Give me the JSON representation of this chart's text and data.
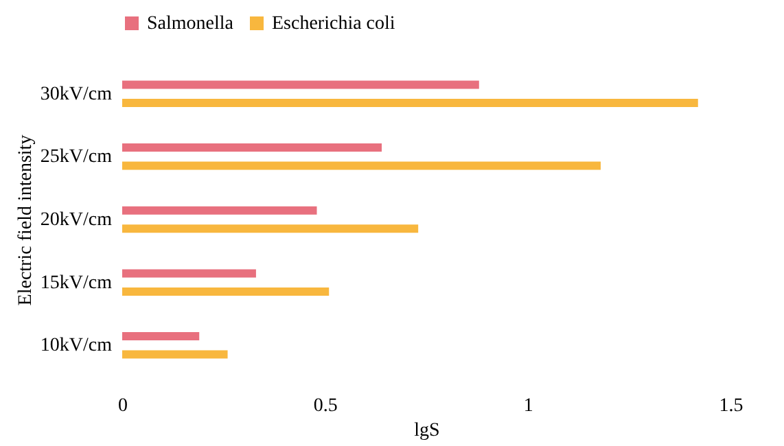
{
  "chart_data": {
    "type": "bar",
    "orientation": "horizontal",
    "xlabel": "lgS",
    "ylabel": "Electric field intensity",
    "categories": [
      "30kV/cm",
      "25kV/cm",
      "20kV/cm",
      "15kV/cm",
      "10kV/cm"
    ],
    "series": [
      {
        "name": "Salmonella",
        "color": "#e8707e",
        "values": [
          0.88,
          0.64,
          0.48,
          0.33,
          0.19
        ]
      },
      {
        "name": "Escherichia coli",
        "color": "#f8b73e",
        "values": [
          1.42,
          1.18,
          0.73,
          0.51,
          0.26
        ]
      }
    ],
    "xlim": [
      0,
      1.5
    ],
    "xticks": [
      0,
      0.5,
      1,
      1.5
    ],
    "grid": false,
    "legend": "top"
  }
}
